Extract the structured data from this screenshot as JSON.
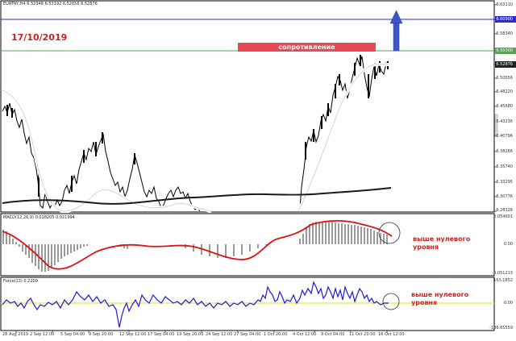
{
  "chart": {
    "title": "EURTRY,H4  6.52948 6.53192 6.52656 6.52876",
    "date_annotation": "17/10/2019",
    "resistance_label": "сопротивление",
    "price_scale": [
      "6.63110",
      "6.60900",
      "6.58340",
      "6.55000",
      "6.52876",
      "6.50656",
      "6.48220",
      "6.45680",
      "6.43236",
      "6.40796",
      "6.38266",
      "6.35740",
      "6.33295",
      "6.30776",
      "6.28326"
    ],
    "date_labels": [
      "28 Aug 2019",
      "2 Sep 12:00",
      "5 Sep 04:00",
      "9 Sep 20:00",
      "12 Sep 12:00",
      "17 Sep 04:00",
      "19 Sep 20:00",
      "24 Sep 12:00",
      "27 Sep 04:00",
      "1 Oct 20:00",
      "4 Oct 12:00",
      "9 Oct 04:00",
      "11 Oct 20:00",
      "16 Oct 12:00"
    ],
    "colors": {
      "resistance": "#e84a55",
      "blue_line": "#2a2ad0",
      "green_line": "#5aa05a",
      "arrow": "#3c55c8",
      "annotation": "#d22020",
      "ma_white": "#ffffff",
      "ma_black": "#1a1a1a"
    }
  },
  "macd": {
    "title": "MACD(12,26,9) 0.018205 0.021994",
    "scale": [
      "0.054601",
      "0.00",
      "-0.051213"
    ],
    "annotation_line1": "выше нулевого",
    "annotation_line2": "уровня",
    "signal_color": "#e01010"
  },
  "force": {
    "title": "Force(13) 0.2209",
    "scale": [
      "163.1852",
      "0.00",
      "-186.65559"
    ],
    "annotation_line1": "выше нулевого",
    "annotation_line2": "уровня",
    "line_color": "#1a1ae0",
    "zero_color": "#e8e840"
  }
}
